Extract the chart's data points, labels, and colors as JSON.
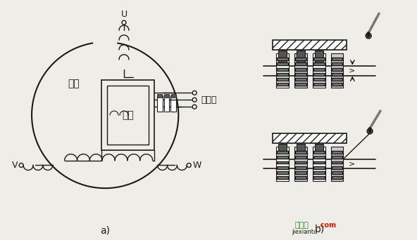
{
  "bg_color": "#f0ede8",
  "line_color": "#1a1a1a",
  "title_a": "a)",
  "title_b": "b)",
  "label_U": "U",
  "label_V": "V",
  "label_W": "W",
  "label_dingzi": "定子",
  "label_zhuanzi": "转子",
  "label_jiedianhuan": "集电环",
  "watermark_cn": "接线图",
  "watermark_com": ".com",
  "watermark_sub": "jiexiantu",
  "gray1": "#aaaaaa",
  "gray2": "#777777",
  "gray3": "#555555",
  "gray4": "#cccccc",
  "green_color": "#228B22",
  "red_color": "#cc2200"
}
